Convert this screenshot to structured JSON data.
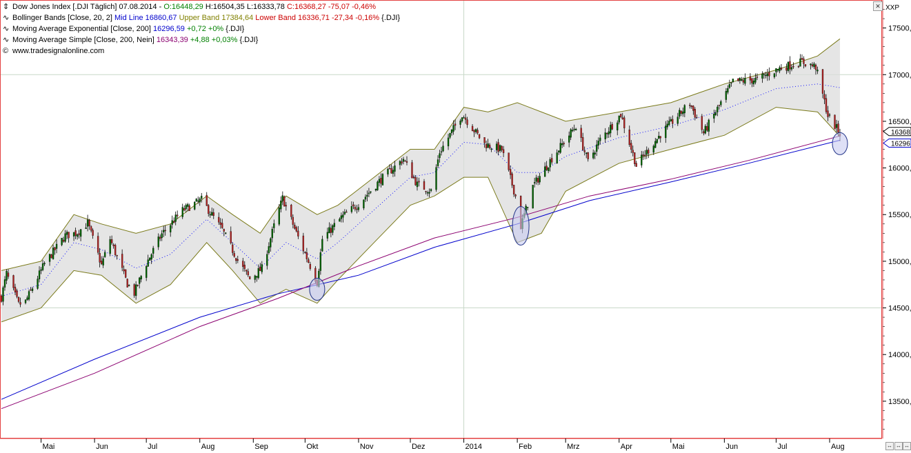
{
  "legend": {
    "main": {
      "symbol": "⇕",
      "title": "Dow Jones Index [.DJI  Täglich] 07.08.2014 - ",
      "open": "O:16448,29",
      "high": "H:16504,35",
      "low": "L:16333,78",
      "close": "C:16368,27 -75,07 -0,46%"
    },
    "bollinger": {
      "symbol": "∿",
      "label": "Bollinger Bands [Close, 20, 2]",
      "mid": "Mid Line 16860,67",
      "upper": "Upper Band 17384,64",
      "lower": "Lower Band 16336,71 -27,34 -0,16%",
      "suffix": "{.DJI}"
    },
    "ema": {
      "symbol": "∿",
      "label": "Moving Average Exponential [Close, 200]",
      "value": "16296,59",
      "change": "+0,72 +0%",
      "suffix": "{.DJI}"
    },
    "sma": {
      "symbol": "∿",
      "label": "Moving Average Simple [Close, 200, Nein]",
      "value": "16343,39",
      "change": "+4,88 +0,03%",
      "suffix": "{.DJI}"
    },
    "source": {
      "symbol": "©",
      "text": "www.tradesignalonline.com"
    }
  },
  "axis_header": "XXP",
  "price_tags": [
    "16368",
    "16296"
  ],
  "colors": {
    "up": "#006400",
    "down": "#b22222",
    "bollinger_band": "#7a7a1a",
    "bollinger_fill": "#dcdcdc",
    "mid_line": "#1010ff",
    "ema": "#0000cc",
    "sma": "#8b0070",
    "frame": "#e34040",
    "grid": "#c8d8c8",
    "circle_fill": "#c8ccf0",
    "circle_stroke": "#223388"
  },
  "chart_data": {
    "type": "candlestick",
    "y_range": [
      13100,
      17800
    ],
    "y_ticks": [
      13500,
      14000,
      14500,
      15000,
      15500,
      16000,
      16500,
      17000,
      17500
    ],
    "y_tick_labels": [
      "13500,",
      "14000,",
      "14500,",
      "15000,",
      "15500,",
      "16000,",
      "16500,",
      "17000,",
      "17500,"
    ],
    "x_labels": [
      "Mai",
      "Jun",
      "Jul",
      "Aug",
      "Sep",
      "Okt",
      "Nov",
      "Dez",
      "2014",
      "Feb",
      "Mrz",
      "Apr",
      "Mai",
      "Jun",
      "Jul",
      "Aug"
    ],
    "x_label_dates": [
      "2013-05-01",
      "2013-06-01",
      "2013-07-01",
      "2013-08-01",
      "2013-09-01",
      "2013-10-01",
      "2013-11-01",
      "2013-12-01",
      "2014-01-01",
      "2014-02-01",
      "2014-03-01",
      "2014-04-01",
      "2014-05-01",
      "2014-06-01",
      "2014-07-01",
      "2014-08-01"
    ],
    "x_range": [
      "2013-04-08",
      "2014-08-07"
    ],
    "grid": "major only",
    "close_points": [
      [
        "2013-04-08",
        14613
      ],
      [
        "2013-04-11",
        14865
      ],
      [
        "2013-04-18",
        14537
      ],
      [
        "2013-04-22",
        14567
      ],
      [
        "2013-05-03",
        14973
      ],
      [
        "2013-05-15",
        15275
      ],
      [
        "2013-05-22",
        15307
      ],
      [
        "2013-05-28",
        15409
      ],
      [
        "2013-06-05",
        14960
      ],
      [
        "2013-06-10",
        15238
      ],
      [
        "2013-06-20",
        14758
      ],
      [
        "2013-06-24",
        14660
      ],
      [
        "2013-07-01",
        14975
      ],
      [
        "2013-07-10",
        15291
      ],
      [
        "2013-07-22",
        15545
      ],
      [
        "2013-08-02",
        15658
      ],
      [
        "2013-08-14",
        15337
      ],
      [
        "2013-08-23",
        15010
      ],
      [
        "2013-08-30",
        14810
      ],
      [
        "2013-09-06",
        14922
      ],
      [
        "2013-09-13",
        15376
      ],
      [
        "2013-09-18",
        15676
      ],
      [
        "2013-09-27",
        15258
      ],
      [
        "2013-10-08",
        14776
      ],
      [
        "2013-10-11",
        15237
      ],
      [
        "2013-10-22",
        15467
      ],
      [
        "2013-11-01",
        15615
      ],
      [
        "2013-11-14",
        15876
      ],
      [
        "2013-11-27",
        16097
      ],
      [
        "2013-12-05",
        15821
      ],
      [
        "2013-12-13",
        15755
      ],
      [
        "2013-12-18",
        16167
      ],
      [
        "2013-12-31",
        16577
      ],
      [
        "2014-01-13",
        16257
      ],
      [
        "2014-01-23",
        16197
      ],
      [
        "2014-01-31",
        15699
      ],
      [
        "2014-02-03",
        15373
      ],
      [
        "2014-02-10",
        15801
      ],
      [
        "2014-02-21",
        16103
      ],
      [
        "2014-03-07",
        16452
      ],
      [
        "2014-03-14",
        16065
      ],
      [
        "2014-03-21",
        16302
      ],
      [
        "2014-04-02",
        16573
      ],
      [
        "2014-04-11",
        16027
      ],
      [
        "2014-04-25",
        16361
      ],
      [
        "2014-05-12",
        16695
      ],
      [
        "2014-05-20",
        16374
      ],
      [
        "2014-06-06",
        16924
      ],
      [
        "2014-06-20",
        16947
      ],
      [
        "2014-07-03",
        17068
      ],
      [
        "2014-07-16",
        17138
      ],
      [
        "2014-07-24",
        17083
      ],
      [
        "2014-07-31",
        16563
      ],
      [
        "2014-08-07",
        16368
      ]
    ],
    "bollinger_upper_points": [
      [
        "2013-04-08",
        14900
      ],
      [
        "2013-05-01",
        15000
      ],
      [
        "2013-05-20",
        15500
      ],
      [
        "2013-06-05",
        15400
      ],
      [
        "2013-06-25",
        15300
      ],
      [
        "2013-07-15",
        15400
      ],
      [
        "2013-08-05",
        15700
      ],
      [
        "2013-08-20",
        15500
      ],
      [
        "2013-09-05",
        15300
      ],
      [
        "2013-09-20",
        15700
      ],
      [
        "2013-10-08",
        15500
      ],
      [
        "2013-10-20",
        15600
      ],
      [
        "2013-11-10",
        15900
      ],
      [
        "2013-12-01",
        16200
      ],
      [
        "2013-12-15",
        16200
      ],
      [
        "2014-01-01",
        16650
      ],
      [
        "2014-01-15",
        16600
      ],
      [
        "2014-02-01",
        16700
      ],
      [
        "2014-02-15",
        16600
      ],
      [
        "2014-03-01",
        16500
      ],
      [
        "2014-04-01",
        16600
      ],
      [
        "2014-05-01",
        16700
      ],
      [
        "2014-06-01",
        16900
      ],
      [
        "2014-07-01",
        17050
      ],
      [
        "2014-07-25",
        17200
      ],
      [
        "2014-08-07",
        17384
      ]
    ],
    "bollinger_lower_points": [
      [
        "2013-04-08",
        14350
      ],
      [
        "2013-05-01",
        14500
      ],
      [
        "2013-05-20",
        14900
      ],
      [
        "2013-06-05",
        14850
      ],
      [
        "2013-06-25",
        14550
      ],
      [
        "2013-07-15",
        14750
      ],
      [
        "2013-08-05",
        15200
      ],
      [
        "2013-08-20",
        14900
      ],
      [
        "2013-09-05",
        14550
      ],
      [
        "2013-09-20",
        14700
      ],
      [
        "2013-10-08",
        14550
      ],
      [
        "2013-10-20",
        14800
      ],
      [
        "2013-11-10",
        15200
      ],
      [
        "2013-12-01",
        15600
      ],
      [
        "2013-12-15",
        15700
      ],
      [
        "2014-01-01",
        15900
      ],
      [
        "2014-01-15",
        15900
      ],
      [
        "2014-02-01",
        15200
      ],
      [
        "2014-02-15",
        15300
      ],
      [
        "2014-03-01",
        15750
      ],
      [
        "2014-04-01",
        16050
      ],
      [
        "2014-05-01",
        16200
      ],
      [
        "2014-06-01",
        16350
      ],
      [
        "2014-07-01",
        16650
      ],
      [
        "2014-07-25",
        16600
      ],
      [
        "2014-08-07",
        16337
      ]
    ],
    "ema200_points": [
      [
        "2013-04-08",
        13520
      ],
      [
        "2013-06-01",
        13950
      ],
      [
        "2013-08-01",
        14400
      ],
      [
        "2013-09-15",
        14650
      ],
      [
        "2013-11-01",
        14850
      ],
      [
        "2013-12-15",
        15150
      ],
      [
        "2014-02-01",
        15400
      ],
      [
        "2014-03-15",
        15650
      ],
      [
        "2014-05-01",
        15850
      ],
      [
        "2014-06-15",
        16050
      ],
      [
        "2014-08-07",
        16297
      ]
    ],
    "sma200_points": [
      [
        "2013-04-08",
        13420
      ],
      [
        "2013-06-01",
        13800
      ],
      [
        "2013-08-01",
        14300
      ],
      [
        "2013-09-15",
        14600
      ],
      [
        "2013-11-01",
        14950
      ],
      [
        "2013-12-15",
        15250
      ],
      [
        "2014-02-01",
        15470
      ],
      [
        "2014-03-15",
        15700
      ],
      [
        "2014-05-01",
        15880
      ],
      [
        "2014-06-15",
        16080
      ],
      [
        "2014-08-07",
        16343
      ]
    ],
    "highlight_circles": [
      {
        "date": "2013-10-08",
        "value": 14700
      },
      {
        "date": "2014-02-03",
        "value": 15380
      },
      {
        "date": "2014-08-07",
        "value": 16260
      }
    ]
  }
}
